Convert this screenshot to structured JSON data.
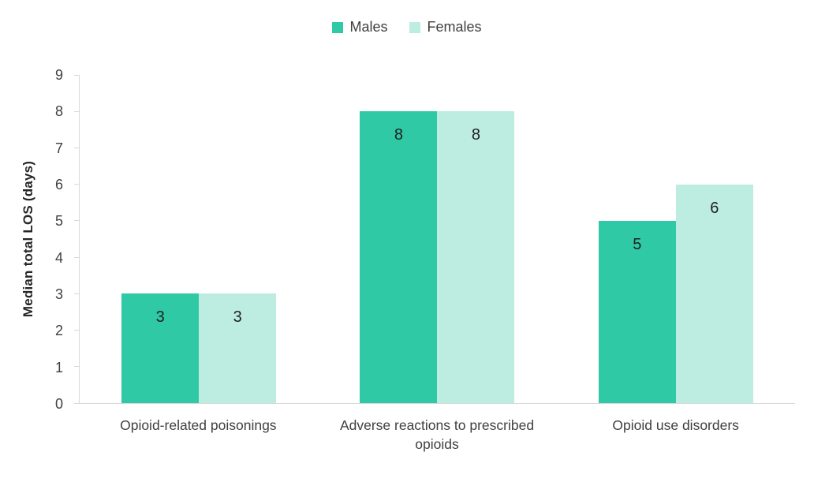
{
  "chart_data": {
    "type": "bar",
    "categories": [
      "Opioid-related poisonings",
      "Adverse reactions to prescribed opioids",
      "Opioid use disorders"
    ],
    "series": [
      {
        "name": "Males",
        "color": "#30c9a5",
        "values": [
          3,
          8,
          5
        ]
      },
      {
        "name": "Females",
        "color": "#bdede0",
        "values": [
          3,
          8,
          6
        ]
      }
    ],
    "title": "",
    "xlabel": "",
    "ylabel": "Median total LOS (days)",
    "ylim": [
      0,
      9
    ],
    "yticks": [
      0,
      1,
      2,
      3,
      4,
      5,
      6,
      7,
      8,
      9
    ],
    "grid": false,
    "legend_position": "top",
    "data_labels": true
  },
  "colors": {
    "axis_line": "#d9d9d9",
    "tick_text": "#404040",
    "category_text": "#404040",
    "data_label_text": "#1f1f1f",
    "background": "#ffffff"
  }
}
